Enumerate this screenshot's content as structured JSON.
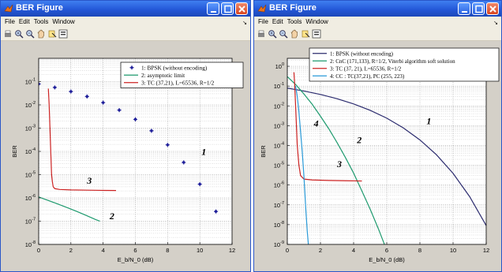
{
  "colors": {
    "title_bar": "#2458d8",
    "blue": "#1f1f9a",
    "navy": "#2b2b6e",
    "green": "#1e9a6e",
    "red": "#cc2222",
    "cyan": "#2a9ad8"
  },
  "windows": [
    {
      "title": "BER Figure",
      "menu": [
        "File",
        "Edit",
        "Tools",
        "Window"
      ],
      "toolbar_icons": [
        "print-icon",
        "zoom-in-icon",
        "zoom-out-icon",
        "pan-icon",
        "data-cursor-icon",
        "colorbar-icon"
      ]
    },
    {
      "title": "BER Figure",
      "menu": [
        "File",
        "Edit",
        "Tools",
        "Window"
      ],
      "toolbar_icons": [
        "print-icon",
        "zoom-in-icon",
        "zoom-out-icon",
        "pan-icon",
        "data-cursor-icon",
        "colorbar-icon"
      ]
    }
  ],
  "chart_data": [
    {
      "type": "scatter",
      "xlabel": "E_b/N_0 (dB)",
      "ylabel": "BER",
      "xlim": [
        0,
        12
      ],
      "ylim_exp": [
        -8,
        0
      ],
      "yscale": "log",
      "grid": true,
      "x_ticks": [
        0,
        2,
        4,
        6,
        8,
        10,
        12
      ],
      "y_tick_exponents": [
        -1,
        -2,
        -3,
        -4,
        -5,
        -6,
        -7,
        -8
      ],
      "legend": {
        "placement": "top-right",
        "entries": [
          "1: BPSK (without encoding)",
          "2: asymptotic limit",
          "3: TC (37,21), L=65536, R=1/2"
        ]
      },
      "series": [
        {
          "name": "1: BPSK (without encoding)",
          "style": "markers",
          "color": "#1f1f9a",
          "x": [
            0,
            1,
            2,
            3,
            4,
            5,
            6,
            7,
            8,
            9,
            10,
            11,
            12
          ],
          "y": [
            0.079,
            0.056,
            0.0375,
            0.0229,
            0.0125,
            0.00595,
            0.00239,
            0.00077,
            0.00019,
            3.36e-05,
            3.9e-06,
            2.6e-07,
            9e-09
          ]
        },
        {
          "name": "2: asymptotic limit",
          "style": "line",
          "color": "#1e9a6e",
          "x": [
            0,
            0.5,
            1,
            1.5,
            2,
            2.5,
            3,
            3.5,
            3.8
          ],
          "y": [
            1.1e-06,
            8.2e-07,
            6.1e-07,
            4.5e-07,
            3.3e-07,
            2.4e-07,
            1.7e-07,
            1.2e-07,
            1e-07
          ]
        },
        {
          "name": "3: TC (37,21), L=65536, R=1/2",
          "style": "line",
          "color": "#cc2222",
          "x": [
            0.6,
            0.65,
            0.7,
            0.75,
            0.8,
            0.85,
            0.9,
            1.0,
            1.3,
            2,
            3,
            4,
            4.8
          ],
          "y": [
            0.05,
            0.01,
            0.001,
            0.0001,
            1e-05,
            5e-06,
            3e-06,
            2.5e-06,
            2.3e-06,
            2.2e-06,
            2.15e-06,
            2.1e-06,
            2.08e-06
          ]
        }
      ],
      "annotations": [
        {
          "text": "1",
          "x": 10.1,
          "y": 7e-05
        },
        {
          "text": "2",
          "x": 4.4,
          "y": 1.2e-07
        },
        {
          "text": "3",
          "x": 3.0,
          "y": 4e-06
        }
      ]
    },
    {
      "type": "line",
      "xlabel": "E_b/N_0 (dB)",
      "ylabel": "BER",
      "xlim": [
        0,
        12
      ],
      "ylim_exp": [
        -9,
        0.4
      ],
      "yscale": "log",
      "grid": true,
      "x_ticks": [
        0,
        2,
        4,
        6,
        8,
        10,
        12
      ],
      "y_tick_exponents": [
        0,
        -1,
        -2,
        -3,
        -4,
        -5,
        -6,
        -7,
        -8,
        -9
      ],
      "legend": {
        "placement": "top-right",
        "entries": [
          "1: BPSK (without encoding)",
          "2: CnC (171,133), R=1/2, Viterbi algorithm soft solution",
          "3: TC (37, 21), L=65536, R=1/2",
          "4: CC : TC(37,21), PC (255, 223)"
        ]
      },
      "series": [
        {
          "name": "1: BPSK (without encoding)",
          "style": "line",
          "color": "#2b2b6e",
          "x": [
            0,
            1,
            2,
            3,
            4,
            5,
            6,
            7,
            8,
            9,
            10,
            11,
            12
          ],
          "y": [
            0.079,
            0.056,
            0.0375,
            0.0229,
            0.0125,
            0.00595,
            0.00239,
            0.00077,
            0.00019,
            3.36e-05,
            3.9e-06,
            2.6e-07,
            9e-09
          ]
        },
        {
          "name": "2: CnC (171,133), R=1/2, Viterbi algorithm soft solution",
          "style": "line",
          "color": "#1e9a6e",
          "x": [
            0,
            0.5,
            1,
            1.5,
            2,
            2.5,
            3,
            3.5,
            4,
            4.5,
            5,
            5.5,
            6
          ],
          "y": [
            0.3,
            0.12,
            0.04,
            0.012,
            0.003,
            0.0007,
            0.00014,
            2.5e-05,
            4e-06,
            5e-07,
            6e-08,
            6e-09,
            5e-10
          ]
        },
        {
          "name": "3: TC (37, 21), L=65536, R=1/2",
          "style": "line",
          "color": "#cc2222",
          "x": [
            0.4,
            0.45,
            0.5,
            0.55,
            0.6,
            0.7,
            0.8,
            1.0,
            1.5,
            2.5,
            3.5,
            4.5
          ],
          "y": [
            0.5,
            0.1,
            0.01,
            0.001,
            0.0001,
            1e-05,
            3e-06,
            2e-06,
            1.8e-06,
            1.7e-06,
            1.65e-06,
            1.6e-06
          ]
        },
        {
          "name": "4: CC : TC(37,21), PC (255, 223)",
          "style": "line",
          "color": "#2a9ad8",
          "x": [
            0.5,
            0.6,
            0.7,
            0.8,
            0.9,
            1.0,
            1.1,
            1.2,
            1.3
          ],
          "y": [
            0.1,
            0.03,
            0.005,
            0.0005,
            5e-05,
            3e-06,
            1e-07,
            5e-09,
            5e-10
          ]
        }
      ],
      "annotations": [
        {
          "text": "1",
          "x": 8.4,
          "y": 0.0012
        },
        {
          "text": "2",
          "x": 4.2,
          "y": 0.00013
        },
        {
          "text": "3",
          "x": 3.0,
          "y": 8e-06
        },
        {
          "text": "4",
          "x": 1.6,
          "y": 0.0009
        }
      ]
    }
  ]
}
